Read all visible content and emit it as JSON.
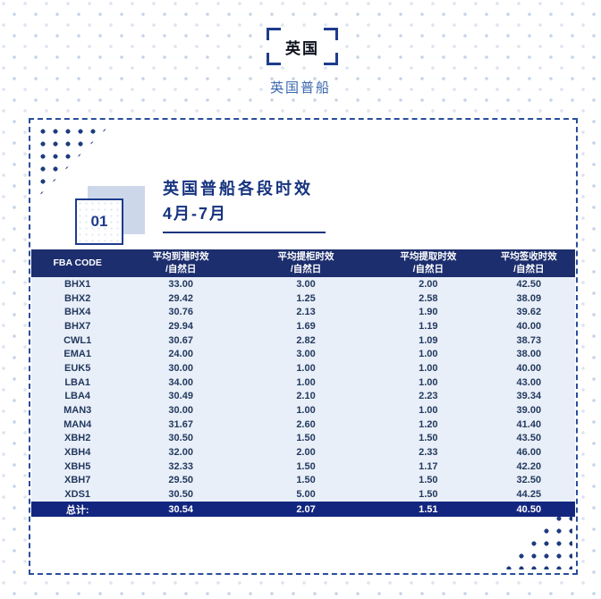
{
  "header": {
    "tag": "英国",
    "subtitle": "英国普船"
  },
  "section": {
    "number": "01",
    "title": "英国普船各段时效",
    "date_range": "4月-7月"
  },
  "table": {
    "columns": [
      {
        "label": "FBA CODE",
        "sub": ""
      },
      {
        "label": "平均到港时效",
        "sub": "/自然日"
      },
      {
        "label": "平均提柜时效",
        "sub": "/自然日"
      },
      {
        "label": "平均提取时效",
        "sub": "/自然日"
      },
      {
        "label": "平均签收时效",
        "sub": "/自然日"
      }
    ],
    "rows": [
      [
        "BHX1",
        "33.00",
        "3.00",
        "2.00",
        "42.50"
      ],
      [
        "BHX2",
        "29.42",
        "1.25",
        "2.58",
        "38.09"
      ],
      [
        "BHX4",
        "30.76",
        "2.13",
        "1.90",
        "39.62"
      ],
      [
        "BHX7",
        "29.94",
        "1.69",
        "1.19",
        "40.00"
      ],
      [
        "CWL1",
        "30.67",
        "2.82",
        "1.09",
        "38.73"
      ],
      [
        "EMA1",
        "24.00",
        "3.00",
        "1.00",
        "38.00"
      ],
      [
        "EUK5",
        "30.00",
        "1.00",
        "1.00",
        "40.00"
      ],
      [
        "LBA1",
        "34.00",
        "1.00",
        "1.00",
        "43.00"
      ],
      [
        "LBA4",
        "30.49",
        "2.10",
        "2.23",
        "39.34"
      ],
      [
        "MAN3",
        "30.00",
        "1.00",
        "1.00",
        "39.00"
      ],
      [
        "MAN4",
        "31.67",
        "2.60",
        "1.20",
        "41.40"
      ],
      [
        "XBH2",
        "30.50",
        "1.50",
        "1.50",
        "43.50"
      ],
      [
        "XBH4",
        "32.00",
        "2.00",
        "2.33",
        "46.00"
      ],
      [
        "XBH5",
        "32.33",
        "1.50",
        "1.17",
        "42.20"
      ],
      [
        "XBH7",
        "29.50",
        "1.50",
        "1.50",
        "32.50"
      ],
      [
        "XDS1",
        "30.50",
        "5.00",
        "1.50",
        "44.25"
      ]
    ],
    "total_row": [
      "总计:",
      "30.54",
      "2.07",
      "1.51",
      "40.50"
    ]
  },
  "colors": {
    "header_navy": "#1c2e6d",
    "total_navy": "#13267f",
    "row_bg": "#e9eff8",
    "accent_navy": "#1e3c8c",
    "title_navy": "#16337f",
    "subtitle_blue": "#3a68ae",
    "shadow_square": "#ccd7ea",
    "dot_pattern": "#c6d3e6"
  }
}
